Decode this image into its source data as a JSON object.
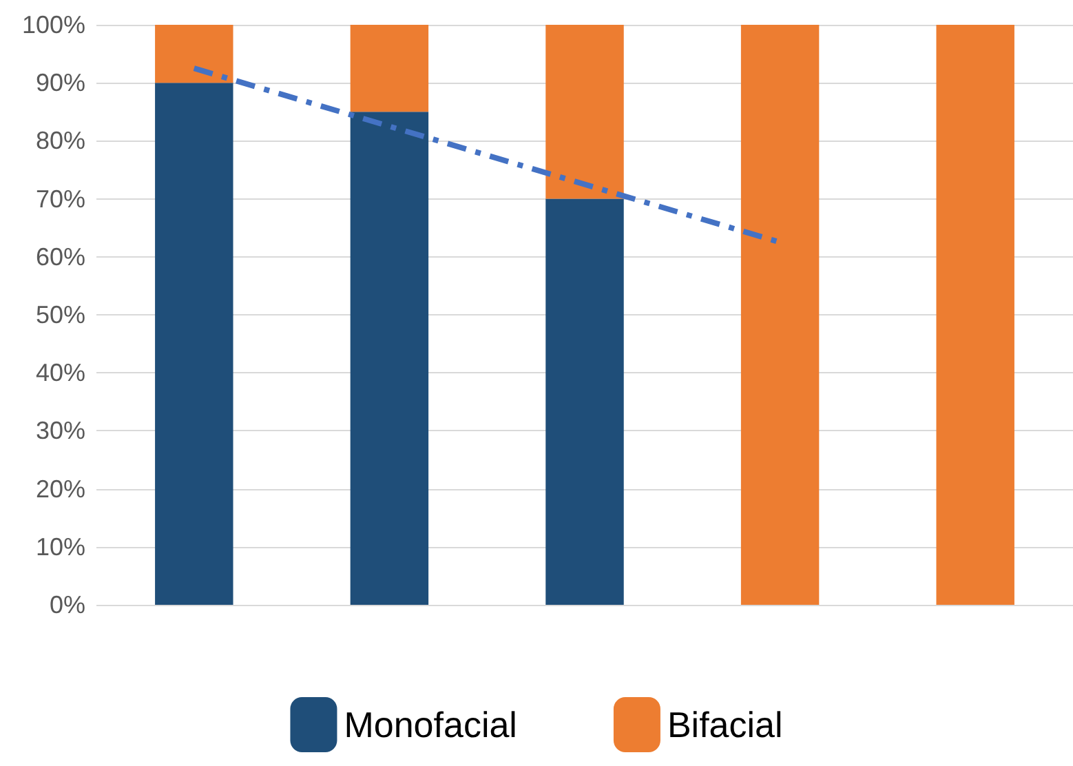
{
  "chart_data": {
    "type": "bar",
    "stacked": true,
    "categories": [
      null,
      null,
      null,
      null,
      null
    ],
    "series": [
      {
        "name": "Monofacial",
        "color": "#1f4e79",
        "values": [
          90,
          85,
          70,
          0,
          0
        ]
      },
      {
        "name": "Bifacial",
        "color": "#ed7d31",
        "values": [
          10,
          15,
          30,
          100,
          100
        ]
      },
      {
        "type": "line",
        "color": "#4472c4",
        "line_style": "dashed",
        "marker": "none",
        "values": [
          92.5,
          82.5,
          72.5,
          62.5,
          null
        ]
      }
    ],
    "ylim": [
      0,
      100
    ],
    "yticks": [
      {
        "value": 0,
        "label": "0%"
      },
      {
        "value": 10,
        "label": "10%"
      },
      {
        "value": 20,
        "label": "20%"
      },
      {
        "value": 30,
        "label": "30%"
      },
      {
        "value": 40,
        "label": "40%"
      },
      {
        "value": 50,
        "label": "50%"
      },
      {
        "value": 60,
        "label": "60%"
      },
      {
        "value": 70,
        "label": "70%"
      },
      {
        "value": 80,
        "label": "80%"
      },
      {
        "value": 90,
        "label": "90%"
      },
      {
        "value": 100,
        "label": "100%"
      }
    ],
    "grid": "y",
    "legend": "bottom"
  }
}
